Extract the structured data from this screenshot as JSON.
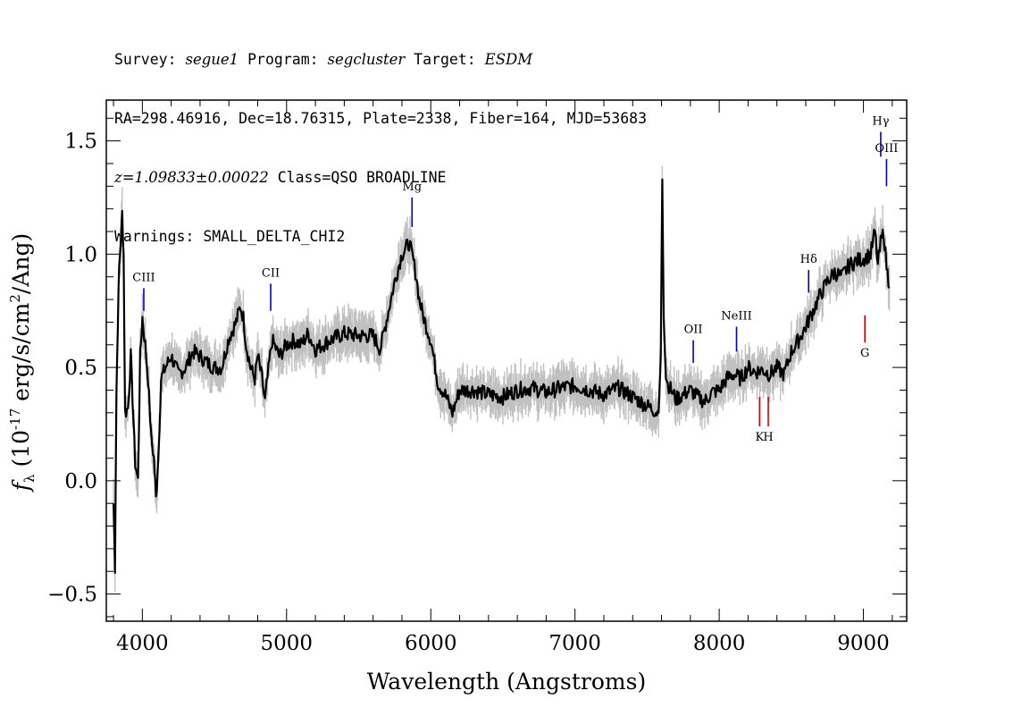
{
  "header": {
    "survey_label": "Survey:",
    "survey": "segue1",
    "program_label": "Program:",
    "program": "segcluster",
    "target_label": "Target:",
    "target": "ESDM",
    "line2": "RA=298.46916, Dec=18.76315, Plate=2338, Fiber=164, MJD=53683",
    "redshift": "z=1.09833±0.00022",
    "class": "Class=QSO BROADLINE",
    "warnings": "Warnings: SMALL_DELTA_CHI2"
  },
  "chart_data": {
    "type": "line",
    "xlabel": "Wavelength (Angstroms)",
    "ylabel_prefix": "f",
    "ylabel_sub": "λ",
    "ylabel_rest": " (10",
    "ylabel_exp": "-17",
    "ylabel_units": " erg/s/cm",
    "ylabel_units_exp": "2",
    "ylabel_units_end": "/Ang)",
    "xlim": [
      3750,
      9300
    ],
    "ylim": [
      -0.62,
      1.68
    ],
    "x_ticks": [
      4000,
      5000,
      6000,
      7000,
      8000,
      9000
    ],
    "x_tick_labels": [
      "4000",
      "5000",
      "6000",
      "7000",
      "8000",
      "9000"
    ],
    "y_ticks": [
      -0.5,
      0.0,
      0.5,
      1.0,
      1.5
    ],
    "y_tick_labels": [
      "−0.5",
      "0.0",
      "0.5",
      "1.0",
      "1.5"
    ],
    "series": [
      {
        "x": [
          3800,
          3810,
          3820,
          3830,
          3840,
          3850,
          3860,
          3870,
          3880,
          3900,
          3920,
          3950,
          3970,
          3985,
          4000,
          4020,
          4040,
          4060,
          4080,
          4095,
          4110,
          4130,
          4160,
          4200,
          4250,
          4300,
          4350,
          4400,
          4450,
          4500,
          4550,
          4600,
          4650,
          4680,
          4700,
          4720,
          4750,
          4780,
          4800,
          4830,
          4850,
          4880,
          4900,
          4950,
          5000,
          5050,
          5100,
          5150,
          5200,
          5300,
          5400,
          5500,
          5600,
          5650,
          5700,
          5750,
          5800,
          5850,
          5880,
          5900,
          5920,
          5950,
          6000,
          6050,
          6100,
          6150,
          6200,
          6300,
          6400,
          6500,
          6600,
          6700,
          6800,
          6900,
          7000,
          7100,
          7200,
          7300,
          7400,
          7500,
          7580,
          7595,
          7605,
          7615,
          7630,
          7650,
          7700,
          7750,
          7800,
          7850,
          7900,
          7950,
          8000,
          8050,
          8100,
          8150,
          8200,
          8250,
          8300,
          8350,
          8400,
          8450,
          8500,
          8550,
          8600,
          8650,
          8700,
          8750,
          8800,
          8850,
          8900,
          8950,
          9000,
          9050,
          9080,
          9100,
          9120,
          9140,
          9160,
          9180
        ],
        "y": [
          -0.1,
          -0.38,
          0.38,
          0.7,
          0.95,
          1.05,
          1.18,
          1.0,
          0.3,
          0.32,
          0.55,
          0.08,
          0.0,
          0.55,
          0.72,
          0.6,
          0.45,
          0.2,
          0.1,
          -0.08,
          0.1,
          0.45,
          0.5,
          0.55,
          0.47,
          0.5,
          0.57,
          0.55,
          0.52,
          0.5,
          0.5,
          0.63,
          0.7,
          0.77,
          0.72,
          0.6,
          0.5,
          0.45,
          0.55,
          0.45,
          0.35,
          0.52,
          0.62,
          0.55,
          0.6,
          0.62,
          0.6,
          0.65,
          0.58,
          0.62,
          0.65,
          0.64,
          0.64,
          0.58,
          0.73,
          0.88,
          1.0,
          1.05,
          0.97,
          0.9,
          0.8,
          0.72,
          0.62,
          0.43,
          0.38,
          0.3,
          0.4,
          0.4,
          0.38,
          0.37,
          0.4,
          0.41,
          0.39,
          0.41,
          0.42,
          0.4,
          0.38,
          0.41,
          0.37,
          0.33,
          0.3,
          0.55,
          1.33,
          0.72,
          0.45,
          0.42,
          0.36,
          0.38,
          0.4,
          0.37,
          0.35,
          0.39,
          0.4,
          0.45,
          0.47,
          0.45,
          0.5,
          0.48,
          0.49,
          0.47,
          0.5,
          0.47,
          0.57,
          0.62,
          0.68,
          0.75,
          0.82,
          0.88,
          0.92,
          0.9,
          0.95,
          0.97,
          0.98,
          1.0,
          1.1,
          0.95,
          1.05,
          1.1,
          0.95,
          0.85
        ]
      }
    ],
    "line_markers": [
      {
        "label": "CIII",
        "x": 4010,
        "y_low": 0.75,
        "y_high": 0.85,
        "side": "top",
        "color": "#0000cc"
      },
      {
        "label": "CII",
        "x": 4890,
        "y_low": 0.75,
        "y_high": 0.87,
        "side": "top",
        "color": "#0000cc"
      },
      {
        "label": "Mg",
        "x": 5870,
        "y_low": 1.12,
        "y_high": 1.25,
        "side": "top",
        "color": "#0000cc"
      },
      {
        "label": "OII",
        "x": 7820,
        "y_low": 0.52,
        "y_high": 0.62,
        "side": "top",
        "color": "#0000cc"
      },
      {
        "label": "NeIII",
        "x": 8120,
        "y_low": 0.57,
        "y_high": 0.68,
        "side": "top",
        "color": "#0000cc"
      },
      {
        "label": "Hδ",
        "x": 8620,
        "y_low": 0.83,
        "y_high": 0.93,
        "side": "top",
        "color": "#0000cc"
      },
      {
        "label": "Hγ",
        "x": 9120,
        "y_low": 1.43,
        "y_high": 1.54,
        "side": "top",
        "color": "#0000cc"
      },
      {
        "label": "OIII",
        "x": 9160,
        "y_low": 1.3,
        "y_high": 1.42,
        "side": "top",
        "color": "#0000cc"
      },
      {
        "label": "K",
        "x": 8280,
        "y_low": 0.24,
        "y_high": 0.37,
        "side": "bottom",
        "color": "#cc0000"
      },
      {
        "label": "H",
        "x": 8340,
        "y_low": 0.24,
        "y_high": 0.37,
        "side": "bottom",
        "color": "#cc0000"
      },
      {
        "label": "G",
        "x": 9010,
        "y_low": 0.61,
        "y_high": 0.73,
        "side": "bottom",
        "color": "#cc0000"
      }
    ],
    "flux_color": "#000000",
    "error_band_color": "#c0c0c0",
    "grid": false
  }
}
